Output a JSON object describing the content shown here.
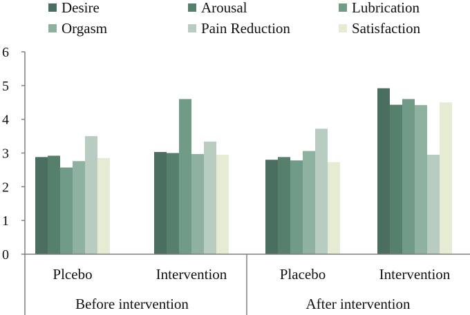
{
  "chart_data": {
    "type": "bar",
    "title": "",
    "xlabel": "",
    "ylabel": "",
    "ylim": [
      0,
      6
    ],
    "yticks": [
      "0",
      "1",
      "2",
      "3",
      "4",
      "5",
      "6"
    ],
    "grid": false,
    "legend_position": "top",
    "categories": [
      "Plcebo",
      "Intervention",
      "Placebo",
      "Intervention"
    ],
    "groups": [
      {
        "label": "Before intervention",
        "categories": [
          0,
          1
        ]
      },
      {
        "label": "After intervention",
        "categories": [
          2,
          3
        ]
      }
    ],
    "series": [
      {
        "name": "Desire",
        "color": "#4a6e5f",
        "values": [
          2.88,
          3.03,
          2.8,
          4.92
        ]
      },
      {
        "name": "Arousal",
        "color": "#57806c",
        "values": [
          2.92,
          3.0,
          2.88,
          4.43
        ]
      },
      {
        "name": "Lubrication",
        "color": "#6f9b87",
        "values": [
          2.57,
          4.6,
          2.78,
          4.6
        ]
      },
      {
        "name": "Orgasm",
        "color": "#8fb1a0",
        "values": [
          2.76,
          2.97,
          3.06,
          4.42
        ]
      },
      {
        "name": "Pain Reduction",
        "color": "#b8ccc2",
        "values": [
          3.5,
          3.34,
          3.72,
          2.95
        ]
      },
      {
        "name": "Satisfaction",
        "color": "#e6ecd4",
        "values": [
          2.85,
          2.95,
          2.73,
          4.5
        ]
      }
    ]
  }
}
